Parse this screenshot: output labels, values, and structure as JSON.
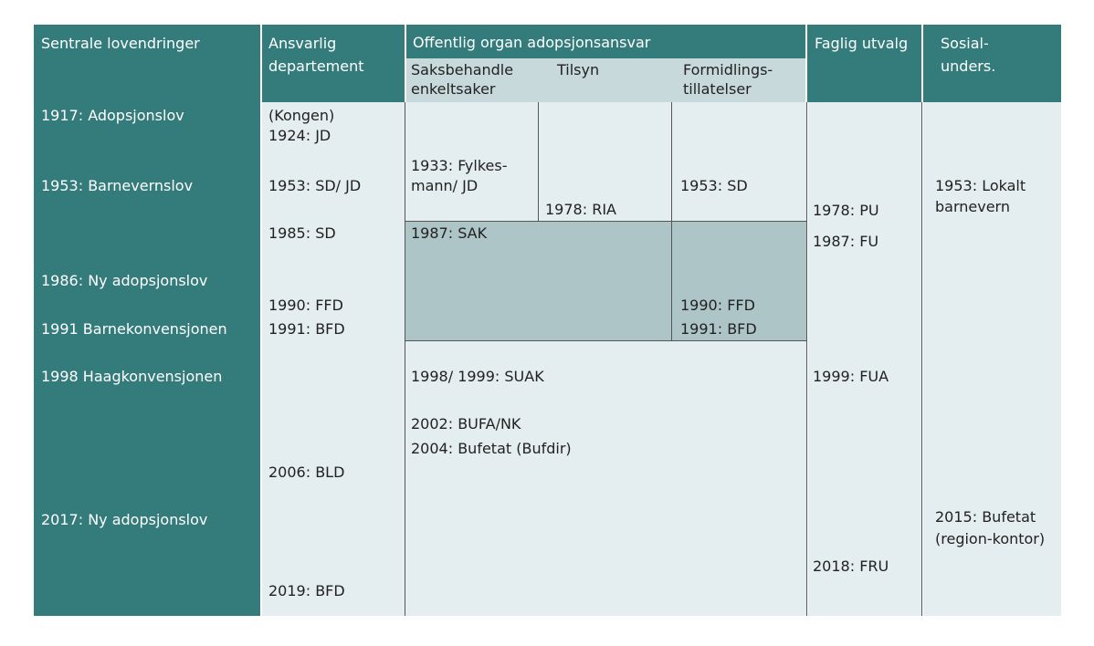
{
  "header": {
    "col1": "Sentrale lovendringer",
    "col2": [
      "Ansvarlig",
      "departement"
    ],
    "col3": "Offentlig organ adopsjonsansvar",
    "col3_sub": [
      [
        "Saksbehandle",
        "enkeltsaker"
      ],
      [
        "Tilsyn"
      ],
      [
        "Formidlings-",
        "tillatelser"
      ]
    ],
    "col4": "Faglig utvalg",
    "col5": [
      "Sosial-",
      "unders."
    ]
  },
  "lovendringer": [
    "1917: Adopsjonslov",
    "1953: Barnevernslov",
    "1986: Ny adopsjonslov",
    "1991 Barnekonvensjonen",
    "1998 Haagkonvensjonen",
    "2017: Ny adopsjonslov"
  ],
  "departement": [
    "(Kongen)",
    "1924: JD",
    "1953: SD/ JD",
    "1985: SD",
    "1990: FFD",
    "1991: BFD",
    "2006: BLD",
    "2019: BFD"
  ],
  "organ": {
    "saksbehandle": [
      "1933: Fylkes-",
      "mann/ JD"
    ],
    "tilsyn": "1978: RIA",
    "formidling": "1953: SD",
    "sak": "1987: SAK",
    "formidling_later": [
      "1990: FFD",
      "1991: BFD"
    ],
    "felles": [
      "1998/ 1999: SUAK",
      "2002: BUFA/NK",
      "2004: Bufetat (Bufdir)"
    ]
  },
  "faglig_utvalg": [
    "1978: PU",
    "1987: FU",
    "1999: FUA",
    "2018: FRU"
  ],
  "sosial": [
    [
      "1953: Lokalt",
      "barnevern"
    ],
    [
      "2015: Bufetat",
      "(region-kontor)"
    ]
  ]
}
